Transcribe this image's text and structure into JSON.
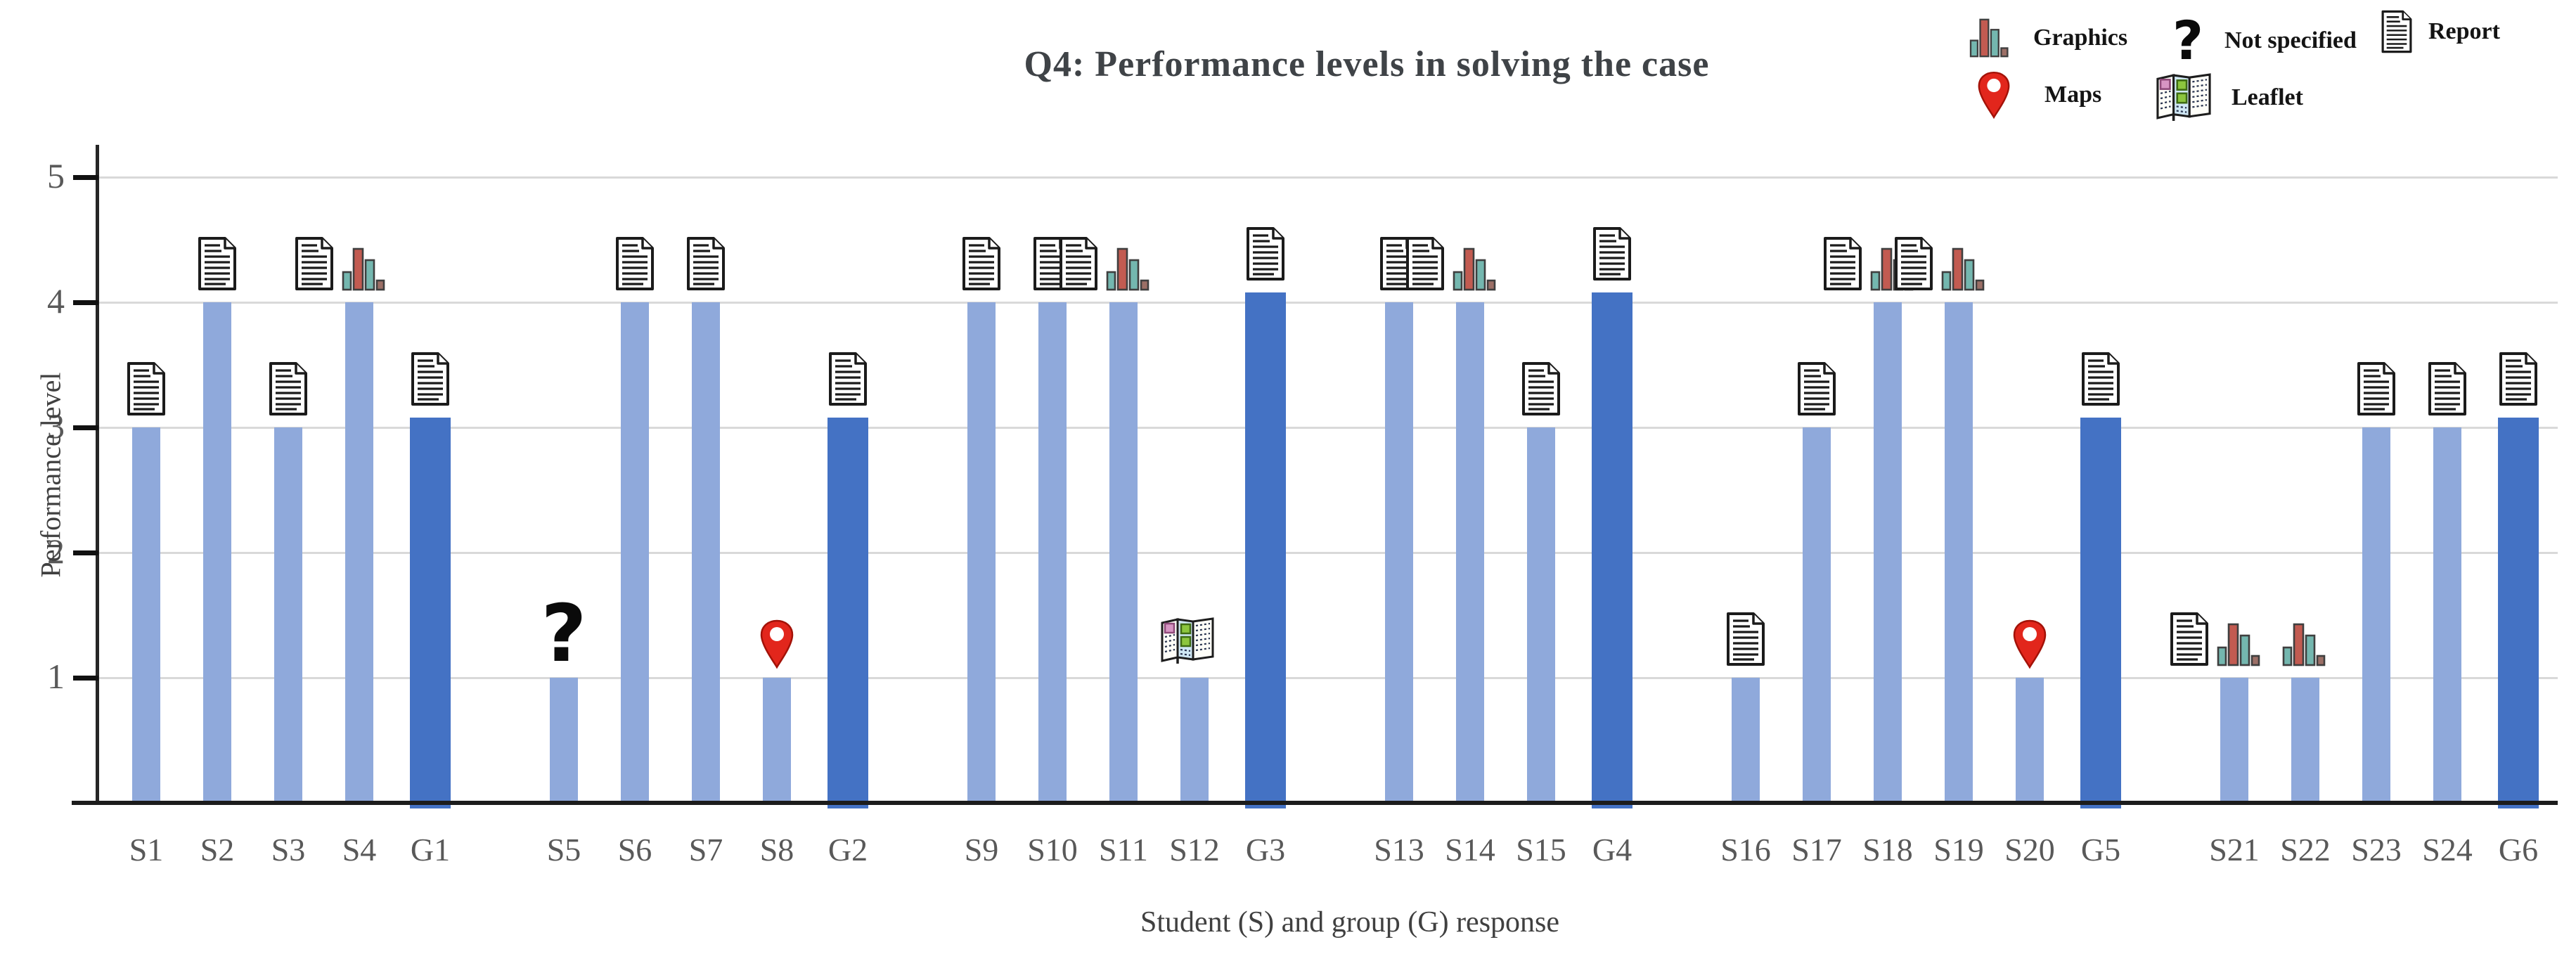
{
  "title": "Q4: Performance levels in solving the case",
  "legend": {
    "items": [
      {
        "icon": "graphics",
        "label": "Graphics"
      },
      {
        "icon": "question",
        "label": "Not specified"
      },
      {
        "icon": "report",
        "label": "Report"
      },
      {
        "icon": "maps",
        "label": "Maps"
      },
      {
        "icon": "leaflet",
        "label": "Leaflet"
      }
    ]
  },
  "chart_data": {
    "type": "bar",
    "title": "Q4: Performance levels in solving the case",
    "xlabel": "Student (S) and group (G) response",
    "ylabel": "Performance level",
    "ylim": [
      0,
      5
    ],
    "yticks": [
      1,
      2,
      3,
      4,
      5
    ],
    "grid": true,
    "legend_position": "top-right",
    "colors": {
      "student_bar": "#8FA9DB",
      "group_bar": "#4472C4",
      "gridline": "#D9D9D9",
      "axis": "#1c1c1c",
      "tick_text": "#595959",
      "pin_red": "#E2261C",
      "mini_teal": "#74B7AF",
      "mini_red": "#C25B51"
    },
    "clusters": [
      {
        "bars": [
          {
            "label": "S1",
            "value": 3,
            "type": "student",
            "icons": [
              "report"
            ]
          },
          {
            "label": "S2",
            "value": 4,
            "type": "student",
            "icons": [
              "report"
            ]
          },
          {
            "label": "S3",
            "value": 3,
            "type": "student",
            "icons": [
              "report"
            ]
          },
          {
            "label": "S4",
            "value": 4,
            "type": "student",
            "icons": [
              "report",
              "graphics"
            ]
          },
          {
            "label": "G1",
            "value": 3,
            "type": "group",
            "icons": [
              "report"
            ]
          }
        ]
      },
      {
        "bars": [
          {
            "label": "S5",
            "value": 1,
            "type": "student",
            "icons": [
              "question"
            ]
          },
          {
            "label": "S6",
            "value": 4,
            "type": "student",
            "icons": [
              "report"
            ]
          },
          {
            "label": "S7",
            "value": 4,
            "type": "student",
            "icons": [
              "report"
            ]
          },
          {
            "label": "S8",
            "value": 1,
            "type": "student",
            "icons": [
              "maps"
            ]
          },
          {
            "label": "G2",
            "value": 3,
            "type": "group",
            "icons": [
              "report"
            ]
          }
        ]
      },
      {
        "bars": [
          {
            "label": "S9",
            "value": 4,
            "type": "student",
            "icons": [
              "report"
            ]
          },
          {
            "label": "S10",
            "value": 4,
            "type": "student",
            "icons": [
              "report"
            ]
          },
          {
            "label": "S11",
            "value": 4,
            "type": "student",
            "icons": [
              "report",
              "graphics"
            ]
          },
          {
            "label": "S12",
            "value": 1,
            "type": "student",
            "icons": [
              "leaflet"
            ]
          },
          {
            "label": "G3",
            "value": 4,
            "type": "group",
            "icons": [
              "report"
            ]
          }
        ]
      },
      {
        "bars": [
          {
            "label": "S13",
            "value": 4,
            "type": "student",
            "icons": [
              "report"
            ]
          },
          {
            "label": "S14",
            "value": 4,
            "type": "student",
            "icons": [
              "report",
              "graphics"
            ]
          },
          {
            "label": "S15",
            "value": 3,
            "type": "student",
            "icons": [
              "report"
            ]
          },
          {
            "label": "G4",
            "value": 4,
            "type": "group",
            "icons": [
              "report"
            ]
          }
        ]
      },
      {
        "bars": [
          {
            "label": "S16",
            "value": 1,
            "type": "student",
            "icons": [
              "report"
            ]
          },
          {
            "label": "S17",
            "value": 3,
            "type": "student",
            "icons": [
              "report"
            ]
          },
          {
            "label": "S18",
            "value": 4,
            "type": "student",
            "icons": [
              "report",
              "graphics"
            ]
          },
          {
            "label": "S19",
            "value": 4,
            "type": "student",
            "icons": [
              "report",
              "graphics"
            ]
          },
          {
            "label": "S20",
            "value": 1,
            "type": "student",
            "icons": [
              "maps"
            ]
          },
          {
            "label": "G5",
            "value": 3,
            "type": "group",
            "icons": [
              "report"
            ]
          }
        ]
      },
      {
        "bars": [
          {
            "label": "S21",
            "value": 1,
            "type": "student",
            "icons": [
              "report",
              "graphics"
            ]
          },
          {
            "label": "S22",
            "value": 1,
            "type": "student",
            "icons": [
              "graphics"
            ]
          },
          {
            "label": "S23",
            "value": 3,
            "type": "student",
            "icons": [
              "report"
            ]
          },
          {
            "label": "S24",
            "value": 3,
            "type": "student",
            "icons": [
              "report"
            ]
          },
          {
            "label": "G6",
            "value": 3,
            "type": "group",
            "icons": [
              "report"
            ]
          }
        ]
      }
    ]
  }
}
